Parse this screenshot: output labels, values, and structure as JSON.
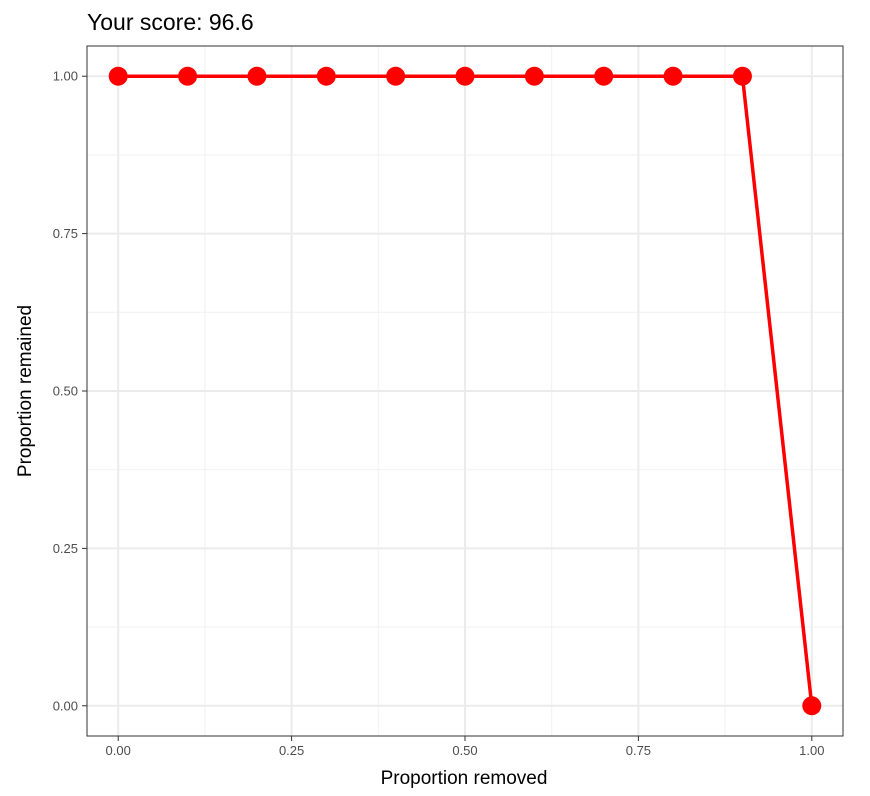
{
  "chart_data": {
    "type": "line",
    "title": "Your score:  96.6",
    "xlabel": "Proportion removed",
    "ylabel": "Proportion remained",
    "xlim": [
      -0.045,
      1.045
    ],
    "ylim": [
      -0.048,
      1.048
    ],
    "x_ticks": [
      0,
      0.25,
      0.5,
      0.75,
      1
    ],
    "x_tick_labels": [
      "0.00",
      "0.25",
      "0.50",
      "0.75",
      "1.00"
    ],
    "y_ticks": [
      0,
      0.25,
      0.5,
      0.75,
      1
    ],
    "y_tick_labels": [
      "0.00",
      "0.25",
      "0.50",
      "0.75",
      "1.00"
    ],
    "grid": true,
    "series": [
      {
        "x": [
          0,
          0.1,
          0.2,
          0.3,
          0.4,
          0.5,
          0.6,
          0.7,
          0.8,
          0.9,
          1.0
        ],
        "values": [
          1,
          1,
          1,
          1,
          1,
          1,
          1,
          1,
          1,
          1,
          0
        ],
        "color": "#ff0000"
      }
    ]
  },
  "colors": {
    "major_grid": "#ebebeb",
    "minor_grid": "#f2f2f2",
    "panel_border": "#333333",
    "tick_text": "#4d4d4d"
  }
}
